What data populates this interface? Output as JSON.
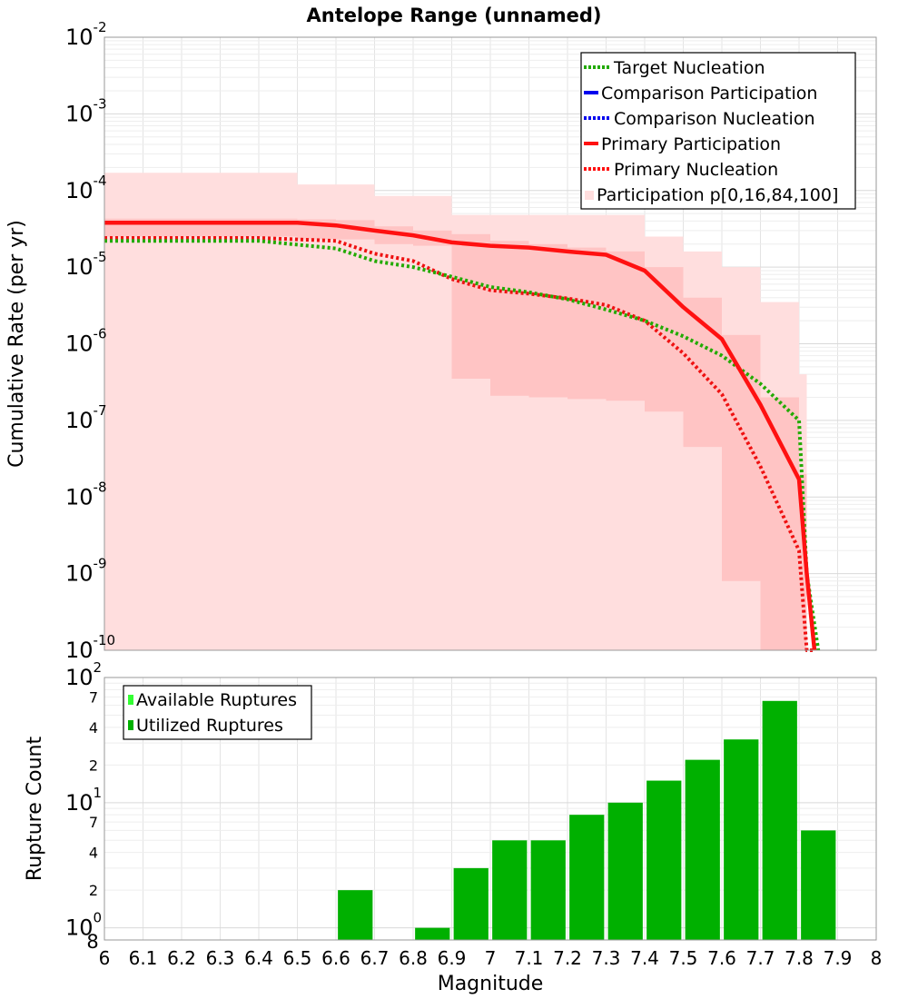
{
  "chart_data": [
    {
      "type": "line",
      "title": "Antelope Range (unnamed)",
      "xlabel": "",
      "ylabel": "Cumulative Rate (per yr)",
      "xlim": [
        6,
        8
      ],
      "ylim": [
        1e-10,
        0.01
      ],
      "yscale": "log",
      "y_ticks": [
        {
          "base": "10",
          "exp": "-2"
        },
        {
          "base": "10",
          "exp": "-3"
        },
        {
          "base": "10",
          "exp": "-4"
        },
        {
          "base": "10",
          "exp": "-5"
        },
        {
          "base": "10",
          "exp": "-6"
        },
        {
          "base": "10",
          "exp": "-7"
        },
        {
          "base": "10",
          "exp": "-8"
        },
        {
          "base": "10",
          "exp": "-9"
        },
        {
          "base": "10",
          "exp": "-10"
        }
      ],
      "legend_position": "top-right",
      "legend": [
        {
          "label": "Target Nucleation",
          "color": "#22aa00",
          "style": "dotted"
        },
        {
          "label": "Comparison Participation",
          "color": "#0000ee",
          "style": "solid"
        },
        {
          "label": "Comparison Nucleation",
          "color": "#0000ee",
          "style": "dotted"
        },
        {
          "label": "Primary Participation",
          "color": "#ff1111",
          "style": "solid"
        },
        {
          "label": "Primary Nucleation",
          "color": "#ff1111",
          "style": "dotted"
        },
        {
          "label": "Participation p[0,16,84,100]",
          "color": "#ffdede",
          "style": "band"
        }
      ],
      "bands": {
        "x": [
          6.0,
          6.4,
          6.5,
          6.6,
          6.7,
          6.8,
          6.9,
          7.0,
          7.1,
          7.2,
          7.3,
          7.4,
          7.5,
          7.6,
          7.7,
          7.8
        ],
        "p0": [
          1e-10,
          1e-10,
          1e-10,
          1e-10,
          1e-10,
          1e-10,
          1e-10,
          1e-10,
          1e-10,
          1e-10,
          1e-10,
          1e-10,
          1e-10,
          1e-10,
          1e-10,
          1e-10
        ],
        "p16": [
          2.5e-05,
          2.5e-05,
          2.3e-05,
          2.3e-05,
          2e-05,
          1.9e-05,
          3.5e-07,
          2.1e-07,
          2e-07,
          1.9e-07,
          1.8e-07,
          1.3e-07,
          4.5e-08,
          8e-10,
          1e-10,
          1e-10
        ],
        "p84": [
          4.3e-05,
          4.3e-05,
          4.2e-05,
          4.1e-05,
          3.4e-05,
          3e-05,
          2.7e-05,
          2.2e-05,
          2e-05,
          1.8e-05,
          1.6e-05,
          1e-05,
          4e-06,
          1.3e-06,
          2e-07,
          2e-08
        ],
        "p100": [
          0.00017,
          0.00017,
          0.00012,
          0.00012,
          8.5e-05,
          8.5e-05,
          4.8e-05,
          4.8e-05,
          4.8e-05,
          4.8e-05,
          4.8e-05,
          2.5e-05,
          1.6e-05,
          1e-05,
          3.5e-06,
          4e-07
        ]
      },
      "series": [
        {
          "name": "Target Nucleation",
          "x": [
            6.0,
            6.4,
            6.6,
            6.7,
            6.8,
            6.9,
            7.0,
            7.1,
            7.2,
            7.3,
            7.4,
            7.5,
            7.6,
            7.7,
            7.8,
            7.82,
            7.85
          ],
          "values": [
            2.2e-05,
            2.2e-05,
            1.75e-05,
            1.2e-05,
            1e-05,
            7.5e-06,
            5.5e-06,
            4.7e-06,
            3.8e-06,
            2.8e-06,
            2e-06,
            1.25e-06,
            7e-07,
            3e-07,
            1e-07,
            1e-09,
            1e-10
          ]
        },
        {
          "name": "Primary Participation",
          "x": [
            6.0,
            6.4,
            6.5,
            6.6,
            6.7,
            6.8,
            6.9,
            7.0,
            7.1,
            7.2,
            7.3,
            7.4,
            7.5,
            7.6,
            7.7,
            7.8,
            7.82,
            7.84
          ],
          "values": [
            3.8e-05,
            3.8e-05,
            3.8e-05,
            3.5e-05,
            3e-05,
            2.6e-05,
            2.1e-05,
            1.9e-05,
            1.8e-05,
            1.6e-05,
            1.45e-05,
            9e-06,
            3e-06,
            1.15e-06,
            1.6e-07,
            1.7e-08,
            1e-09,
            1e-10
          ]
        },
        {
          "name": "Primary Nucleation",
          "x": [
            6.0,
            6.4,
            6.5,
            6.6,
            6.7,
            6.8,
            6.9,
            7.0,
            7.1,
            7.2,
            7.3,
            7.4,
            7.5,
            7.6,
            7.7,
            7.8,
            7.82,
            7.84
          ],
          "values": [
            2.4e-05,
            2.4e-05,
            2.3e-05,
            2.2e-05,
            1.5e-05,
            1.2e-05,
            7e-06,
            5e-06,
            4.5e-06,
            3.9e-06,
            3.2e-06,
            2e-06,
            7.5e-07,
            2.2e-07,
            2.5e-08,
            2e-09,
            1e-10,
            1e-10
          ]
        }
      ]
    },
    {
      "type": "bar",
      "title": "",
      "xlabel": "Magnitude",
      "ylabel": "Rupture Count",
      "xlim": [
        6,
        8
      ],
      "yscale": "log",
      "ylim": [
        0.8,
        100
      ],
      "x_ticks": [
        "6",
        "6.1",
        "6.2",
        "6.3",
        "6.4",
        "6.5",
        "6.6",
        "6.7",
        "6.8",
        "6.9",
        "7",
        "7.1",
        "7.2",
        "7.3",
        "7.4",
        "7.5",
        "7.6",
        "7.7",
        "7.8",
        "7.9",
        "8"
      ],
      "y_ticks": [
        {
          "base": "10",
          "exp": "2"
        },
        {
          "base": "10",
          "exp": "1"
        },
        {
          "base": "10",
          "exp": "0"
        }
      ],
      "y_minor_labels": [
        "7",
        "4",
        "2",
        "7",
        "4",
        "2",
        "8"
      ],
      "legend_position": "top-left",
      "legend": [
        {
          "label": "Available Ruptures",
          "color": "#33ff33"
        },
        {
          "label": "Utilized Ruptures",
          "color": "#00b000"
        }
      ],
      "bar_color": "#00b000",
      "categories": [
        6.65,
        6.85,
        6.95,
        7.05,
        7.15,
        7.25,
        7.35,
        7.45,
        7.55,
        7.65,
        7.75,
        7.85
      ],
      "values": [
        2,
        1,
        3,
        5,
        5,
        8,
        10,
        15,
        22,
        32,
        65,
        6
      ]
    }
  ]
}
